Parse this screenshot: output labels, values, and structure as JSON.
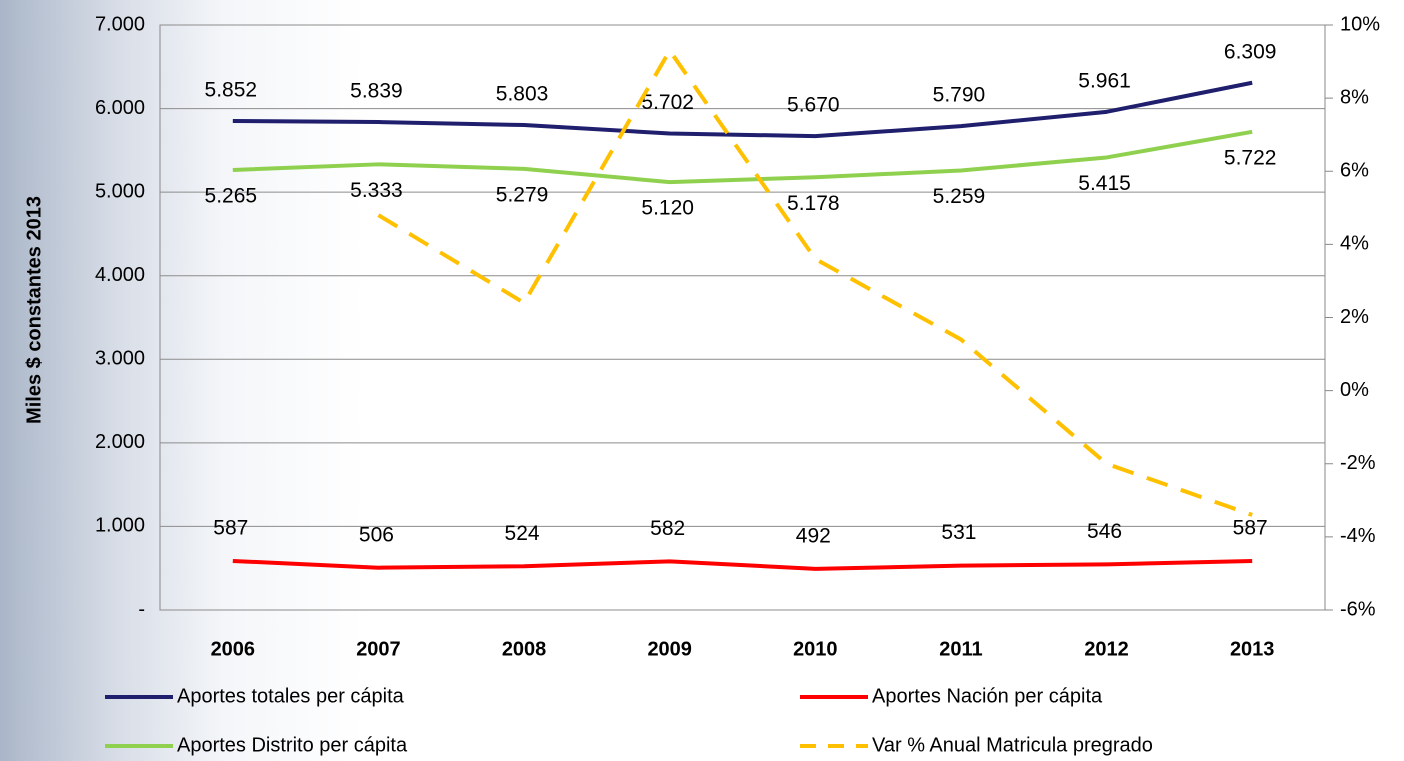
{
  "chart_data": {
    "type": "line",
    "y_label": "Miles $ constantes 2013",
    "categories": [
      "2006",
      "2007",
      "2008",
      "2009",
      "2010",
      "2011",
      "2012",
      "2013"
    ],
    "series": [
      {
        "name": "Aportes totales per cápita",
        "color": "#1f1f6e",
        "values": [
          5852,
          5839,
          5803,
          5702,
          5670,
          5790,
          5961,
          6309
        ],
        "value_labels": [
          "5.852",
          "5.839",
          "5.803",
          "5.702",
          "5.670",
          "5.790",
          "5.961",
          "6.309"
        ]
      },
      {
        "name": "Aportes Nación per cápita",
        "color": "#ff0000",
        "values": [
          587,
          506,
          524,
          582,
          492,
          531,
          546,
          587
        ]
      },
      {
        "name": "Aportes Distrito per cápita",
        "color": "#8fd14f",
        "values": [
          5265,
          5333,
          5279,
          5120,
          5178,
          5259,
          5415,
          5722
        ],
        "value_labels": [
          "5.265",
          "5.333",
          "5.279",
          "5.120",
          "5.178",
          "5.259",
          "5.415",
          "5.722"
        ]
      },
      {
        "name": "Var % Anual Matricula pregrado",
        "color": "#ffc000",
        "axis": "y2",
        "dashed": true,
        "values": [
          null,
          4.8,
          2.4,
          9.3,
          3.6,
          1.4,
          -2.0,
          -3.4
        ]
      }
    ],
    "ylim": [
      0,
      7000
    ],
    "yticks": [
      {
        "value": 0,
        "label": "-"
      },
      {
        "value": 1000,
        "label": "1.000"
      },
      {
        "value": 2000,
        "label": "2.000"
      },
      {
        "value": 3000,
        "label": "3.000"
      },
      {
        "value": 4000,
        "label": "4.000"
      },
      {
        "value": 5000,
        "label": "5.000"
      },
      {
        "value": 6000,
        "label": "6.000"
      },
      {
        "value": 7000,
        "label": "7.000"
      }
    ],
    "y2lim": [
      -6,
      10
    ],
    "y2ticks": [
      {
        "value": -6,
        "label": "-6%"
      },
      {
        "value": -4,
        "label": "-4%"
      },
      {
        "value": -2,
        "label": "-2%"
      },
      {
        "value": 0,
        "label": "0%"
      },
      {
        "value": 2,
        "label": "2%"
      },
      {
        "value": 4,
        "label": "4%"
      },
      {
        "value": 6,
        "label": "6%"
      },
      {
        "value": 8,
        "label": "8%"
      },
      {
        "value": 10,
        "label": "10%"
      }
    ],
    "grid": true,
    "legend": "bottom"
  }
}
